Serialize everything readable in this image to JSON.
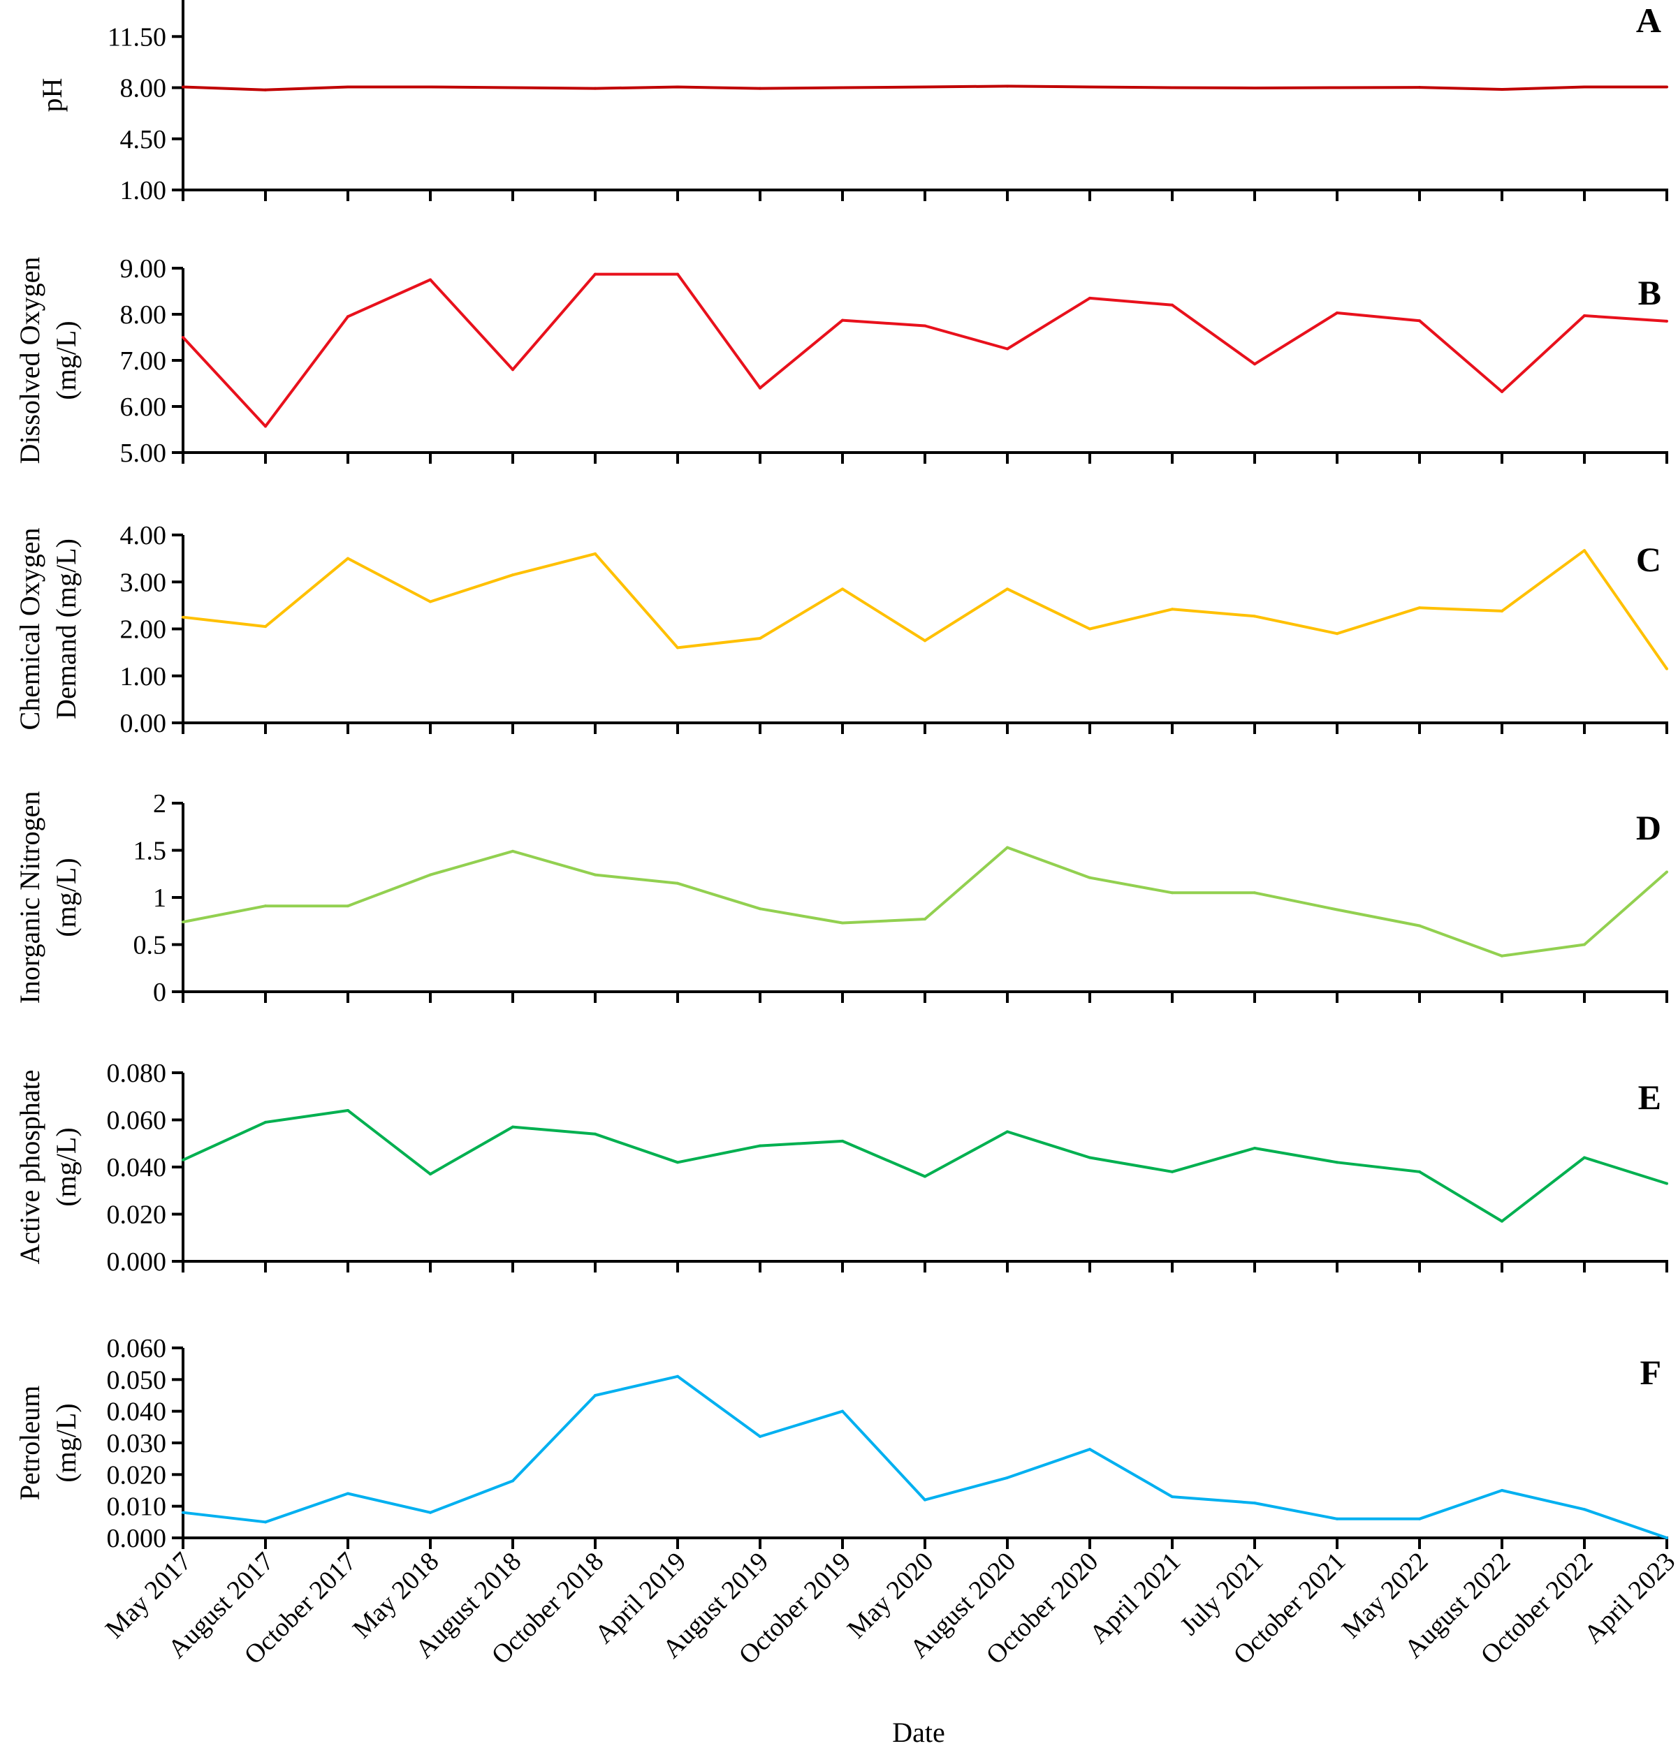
{
  "chart_data": {
    "type": "line",
    "dates": [
      "May 2017",
      "August 2017",
      "October 2017",
      "May 2018",
      "August 2018",
      "October 2018",
      "April 2019",
      "August 2019",
      "October 2019",
      "May 2020",
      "August 2020",
      "October 2020",
      "April 2021",
      "July 2021",
      "October 2021",
      "May 2022",
      "August 2022",
      "October 2022",
      "April 2023"
    ],
    "xlabel": "Date",
    "panels": [
      {
        "letter": "A",
        "ylabel_lines": [
          "pH"
        ],
        "ylim": [
          1.0,
          14.0
        ],
        "yticks": [
          "1.00",
          "4.50",
          "8.00",
          "11.50"
        ],
        "ytick_values": [
          1.0,
          4.5,
          8.0,
          11.5
        ],
        "color": "#c00000",
        "values": [
          8.05,
          7.85,
          8.05,
          8.05,
          8.0,
          7.95,
          8.05,
          7.95,
          8.0,
          8.05,
          8.1,
          8.05,
          8.0,
          7.98,
          8.0,
          8.02,
          7.88,
          8.05,
          8.05
        ]
      },
      {
        "letter": "B",
        "ylabel_lines": [
          "Dissolved Oxygen",
          "(mg/L)"
        ],
        "ylim": [
          5.0,
          9.0
        ],
        "yticks": [
          "5.00",
          "6.00",
          "7.00",
          "8.00",
          "9.00"
        ],
        "ytick_values": [
          5.0,
          6.0,
          7.0,
          8.0,
          9.0
        ],
        "color": "#e8111c",
        "values": [
          7.5,
          5.57,
          7.95,
          8.75,
          6.8,
          8.87,
          8.87,
          6.4,
          7.87,
          7.75,
          7.25,
          8.35,
          8.2,
          6.92,
          8.03,
          7.86,
          6.32,
          7.97,
          7.85
        ]
      },
      {
        "letter": "C",
        "ylabel_lines": [
          "Chemical Oxygen",
          "Demand (mg/L)"
        ],
        "ylim": [
          0.0,
          4.0
        ],
        "yticks": [
          "0.00",
          "1.00",
          "2.00",
          "3.00",
          "4.00"
        ],
        "ytick_values": [
          0.0,
          1.0,
          2.0,
          3.0,
          4.0
        ],
        "color": "#ffc000",
        "values": [
          2.25,
          2.05,
          3.5,
          2.58,
          3.15,
          3.6,
          1.6,
          1.8,
          2.85,
          1.75,
          2.85,
          2.0,
          2.42,
          2.27,
          1.9,
          2.45,
          2.38,
          3.67,
          1.15
        ]
      },
      {
        "letter": "D",
        "ylabel_lines": [
          "Inorganic Nitrogen",
          "(mg/L)"
        ],
        "ylim": [
          0.0,
          2.0
        ],
        "yticks": [
          "0",
          "0.5",
          "1",
          "1.5",
          "2"
        ],
        "ytick_values": [
          0.0,
          0.5,
          1.0,
          1.5,
          2.0
        ],
        "color": "#92d050",
        "values": [
          0.74,
          0.91,
          0.91,
          1.24,
          1.49,
          1.24,
          1.15,
          0.88,
          0.73,
          0.77,
          1.53,
          1.21,
          1.05,
          1.05,
          0.87,
          0.7,
          0.38,
          0.5,
          1.27
        ]
      },
      {
        "letter": "E",
        "ylabel_lines": [
          "Active phosphate",
          "(mg/L)"
        ],
        "ylim": [
          0.0,
          0.08
        ],
        "yticks": [
          "0.000",
          "0.020",
          "0.040",
          "0.060",
          "0.080"
        ],
        "ytick_values": [
          0.0,
          0.02,
          0.04,
          0.06,
          0.08
        ],
        "color": "#00b050",
        "values": [
          0.043,
          0.059,
          0.064,
          0.037,
          0.057,
          0.054,
          0.042,
          0.049,
          0.051,
          0.036,
          0.055,
          0.044,
          0.038,
          0.048,
          0.042,
          0.038,
          0.017,
          0.044,
          0.033
        ]
      },
      {
        "letter": "F",
        "ylabel_lines": [
          "Petroleum",
          "(mg/L)"
        ],
        "ylim": [
          0.0,
          0.06
        ],
        "yticks": [
          "0.000",
          "0.010",
          "0.020",
          "0.030",
          "0.040",
          "0.050",
          "0.060"
        ],
        "ytick_values": [
          0.0,
          0.01,
          0.02,
          0.03,
          0.04,
          0.05,
          0.06
        ],
        "color": "#00b0f0",
        "values": [
          0.008,
          0.005,
          0.014,
          0.008,
          0.018,
          0.045,
          0.051,
          0.032,
          0.04,
          0.012,
          0.019,
          0.028,
          0.013,
          0.011,
          0.006,
          0.006,
          0.015,
          0.009,
          0.0
        ]
      }
    ]
  }
}
